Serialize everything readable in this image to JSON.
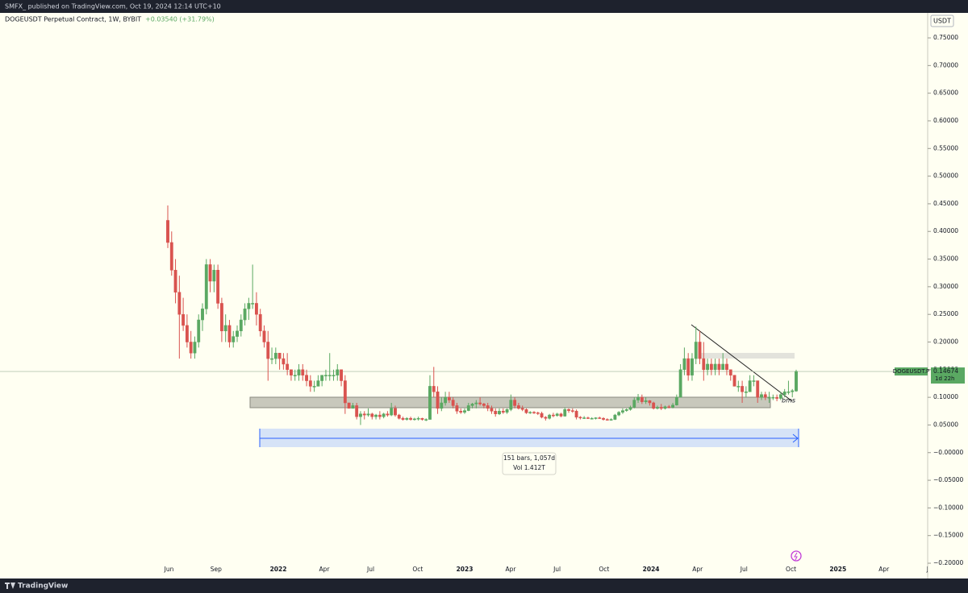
{
  "header": {
    "publisher": "SMFX_ published on TradingView.com, Oct 19, 2024 12:14 UTC+10",
    "brand": "TradingView"
  },
  "chart_data": {
    "type": "candlestick",
    "title": "DOGEUSDT Perpetual Contract, 1W, BYBIT",
    "change": "+0.03540 (+31.79%)",
    "currency": "USDT",
    "symbol_label": "DOGEUSDT.P",
    "last_price": 0.14674,
    "countdown": "1d 22h",
    "annotation": "bms",
    "measure": {
      "bars": "151 bars, 1,057d",
      "volume": "Vol 1.412T"
    },
    "up_color": "#5aa862",
    "down_color": "#d9534f",
    "ylim": [
      -0.2189,
      0.7952
    ],
    "yticks": [
      {
        "value": 0.75,
        "label": "0.75000"
      },
      {
        "value": 0.7,
        "label": "0.70000"
      },
      {
        "value": 0.65,
        "label": "0.65000"
      },
      {
        "value": 0.6,
        "label": "0.60000"
      },
      {
        "value": 0.55,
        "label": "0.55000"
      },
      {
        "value": 0.5,
        "label": "0.50000"
      },
      {
        "value": 0.45,
        "label": "0.45000"
      },
      {
        "value": 0.4,
        "label": "0.40000"
      },
      {
        "value": 0.35,
        "label": "0.35000"
      },
      {
        "value": 0.3,
        "label": "0.30000"
      },
      {
        "value": 0.25,
        "label": "0.25000"
      },
      {
        "value": 0.2,
        "label": "0.20000"
      },
      {
        "value": 0.15,
        "label": "0.15000"
      },
      {
        "value": 0.1,
        "label": "0.10000"
      },
      {
        "value": 0.05,
        "label": "0.05000"
      },
      {
        "value": 0,
        "label": "−0.00000"
      },
      {
        "value": -0.05,
        "label": "−0.05000"
      },
      {
        "value": -0.1,
        "label": "−0.10000"
      },
      {
        "value": -0.15,
        "label": "−0.15000"
      },
      {
        "value": -0.2,
        "label": "−0.20000"
      }
    ],
    "xticks": [
      {
        "value": "2021-06",
        "label": "Jun"
      },
      {
        "value": "2021-09",
        "label": "Sep"
      },
      {
        "value": "2022-01",
        "label": "2022"
      },
      {
        "value": "2022-04",
        "label": "Apr"
      },
      {
        "value": "2022-07",
        "label": "Jul"
      },
      {
        "value": "2022-10",
        "label": "Oct"
      },
      {
        "value": "2023-01",
        "label": "2023"
      },
      {
        "value": "2023-04",
        "label": "Apr"
      },
      {
        "value": "2023-07",
        "label": "Jul"
      },
      {
        "value": "2023-10",
        "label": "Oct"
      },
      {
        "value": "2024-01",
        "label": "2024"
      },
      {
        "value": "2024-04",
        "label": "Apr"
      },
      {
        "value": "2024-07",
        "label": "Jul"
      },
      {
        "value": "2024-10",
        "label": "Oct"
      },
      {
        "value": "2025-01",
        "label": "2025"
      },
      {
        "value": "2025-04",
        "label": "Apr"
      },
      {
        "value": "2025-07",
        "label": "Jul"
      }
    ],
    "candles": [
      [
        0.42,
        0.447,
        0.37,
        0.38
      ],
      [
        0.38,
        0.4,
        0.32,
        0.33
      ],
      [
        0.33,
        0.35,
        0.27,
        0.29
      ],
      [
        0.29,
        0.32,
        0.17,
        0.25
      ],
      [
        0.25,
        0.28,
        0.22,
        0.23
      ],
      [
        0.23,
        0.25,
        0.19,
        0.2
      ],
      [
        0.2,
        0.22,
        0.17,
        0.18
      ],
      [
        0.18,
        0.21,
        0.17,
        0.2
      ],
      [
        0.2,
        0.25,
        0.19,
        0.24
      ],
      [
        0.24,
        0.27,
        0.22,
        0.26
      ],
      [
        0.26,
        0.35,
        0.25,
        0.34
      ],
      [
        0.34,
        0.35,
        0.29,
        0.31
      ],
      [
        0.31,
        0.34,
        0.29,
        0.33
      ],
      [
        0.33,
        0.34,
        0.26,
        0.27
      ],
      [
        0.27,
        0.28,
        0.2,
        0.22
      ],
      [
        0.22,
        0.25,
        0.2,
        0.23
      ],
      [
        0.23,
        0.24,
        0.19,
        0.2
      ],
      [
        0.2,
        0.22,
        0.19,
        0.21
      ],
      [
        0.21,
        0.23,
        0.2,
        0.22
      ],
      [
        0.22,
        0.25,
        0.21,
        0.24
      ],
      [
        0.24,
        0.27,
        0.23,
        0.26
      ],
      [
        0.26,
        0.28,
        0.24,
        0.27
      ],
      [
        0.27,
        0.34,
        0.26,
        0.27
      ],
      [
        0.27,
        0.29,
        0.23,
        0.25
      ],
      [
        0.25,
        0.26,
        0.21,
        0.22
      ],
      [
        0.22,
        0.23,
        0.19,
        0.2
      ],
      [
        0.2,
        0.22,
        0.13,
        0.17
      ],
      [
        0.17,
        0.19,
        0.16,
        0.17
      ],
      [
        0.17,
        0.19,
        0.16,
        0.18
      ],
      [
        0.18,
        0.18,
        0.15,
        0.17
      ],
      [
        0.17,
        0.18,
        0.15,
        0.16
      ],
      [
        0.16,
        0.18,
        0.14,
        0.15
      ],
      [
        0.15,
        0.15,
        0.13,
        0.14
      ],
      [
        0.14,
        0.15,
        0.13,
        0.14
      ],
      [
        0.14,
        0.16,
        0.13,
        0.15
      ],
      [
        0.15,
        0.16,
        0.13,
        0.14
      ],
      [
        0.14,
        0.15,
        0.12,
        0.13
      ],
      [
        0.13,
        0.14,
        0.11,
        0.12
      ],
      [
        0.12,
        0.13,
        0.11,
        0.12
      ],
      [
        0.12,
        0.14,
        0.12,
        0.13
      ],
      [
        0.13,
        0.14,
        0.12,
        0.14
      ],
      [
        0.14,
        0.15,
        0.13,
        0.14
      ],
      [
        0.14,
        0.18,
        0.13,
        0.14
      ],
      [
        0.14,
        0.15,
        0.13,
        0.14
      ],
      [
        0.14,
        0.16,
        0.13,
        0.15
      ],
      [
        0.15,
        0.15,
        0.12,
        0.13
      ],
      [
        0.13,
        0.14,
        0.07,
        0.09
      ],
      [
        0.09,
        0.09,
        0.08,
        0.08
      ],
      [
        0.08,
        0.09,
        0.08,
        0.085
      ],
      [
        0.085,
        0.09,
        0.06,
        0.065
      ],
      [
        0.065,
        0.075,
        0.05,
        0.07
      ],
      [
        0.07,
        0.075,
        0.06,
        0.068
      ],
      [
        0.068,
        0.08,
        0.065,
        0.07
      ],
      [
        0.07,
        0.072,
        0.06,
        0.065
      ],
      [
        0.065,
        0.07,
        0.06,
        0.068
      ],
      [
        0.068,
        0.075,
        0.06,
        0.065
      ],
      [
        0.065,
        0.072,
        0.062,
        0.07
      ],
      [
        0.07,
        0.075,
        0.065,
        0.068
      ],
      [
        0.068,
        0.09,
        0.066,
        0.08
      ],
      [
        0.08,
        0.085,
        0.065,
        0.068
      ],
      [
        0.068,
        0.07,
        0.06,
        0.062
      ],
      [
        0.062,
        0.065,
        0.058,
        0.06
      ],
      [
        0.06,
        0.064,
        0.058,
        0.062
      ],
      [
        0.062,
        0.065,
        0.058,
        0.06
      ],
      [
        0.06,
        0.063,
        0.058,
        0.061
      ],
      [
        0.061,
        0.065,
        0.058,
        0.062
      ],
      [
        0.062,
        0.063,
        0.058,
        0.06
      ],
      [
        0.06,
        0.062,
        0.057,
        0.06
      ],
      [
        0.06,
        0.14,
        0.06,
        0.12
      ],
      [
        0.12,
        0.155,
        0.1,
        0.11
      ],
      [
        0.11,
        0.12,
        0.07,
        0.08
      ],
      [
        0.08,
        0.1,
        0.075,
        0.09
      ],
      [
        0.09,
        0.11,
        0.085,
        0.1
      ],
      [
        0.1,
        0.11,
        0.09,
        0.095
      ],
      [
        0.095,
        0.1,
        0.08,
        0.085
      ],
      [
        0.085,
        0.09,
        0.07,
        0.075
      ],
      [
        0.075,
        0.08,
        0.07,
        0.073
      ],
      [
        0.073,
        0.08,
        0.07,
        0.076
      ],
      [
        0.076,
        0.09,
        0.075,
        0.085
      ],
      [
        0.085,
        0.09,
        0.08,
        0.088
      ],
      [
        0.088,
        0.095,
        0.08,
        0.09
      ],
      [
        0.09,
        0.1,
        0.085,
        0.088
      ],
      [
        0.088,
        0.09,
        0.08,
        0.085
      ],
      [
        0.085,
        0.09,
        0.075,
        0.08
      ],
      [
        0.08,
        0.085,
        0.07,
        0.075
      ],
      [
        0.075,
        0.08,
        0.065,
        0.07
      ],
      [
        0.07,
        0.08,
        0.068,
        0.075
      ],
      [
        0.075,
        0.08,
        0.07,
        0.073
      ],
      [
        0.073,
        0.08,
        0.07,
        0.078
      ],
      [
        0.078,
        0.105,
        0.075,
        0.095
      ],
      [
        0.095,
        0.1,
        0.08,
        0.085
      ],
      [
        0.085,
        0.09,
        0.078,
        0.08
      ],
      [
        0.08,
        0.085,
        0.075,
        0.078
      ],
      [
        0.078,
        0.08,
        0.07,
        0.072
      ],
      [
        0.072,
        0.075,
        0.07,
        0.073
      ],
      [
        0.073,
        0.075,
        0.07,
        0.072
      ],
      [
        0.072,
        0.074,
        0.068,
        0.071
      ],
      [
        0.071,
        0.074,
        0.062,
        0.064
      ],
      [
        0.064,
        0.066,
        0.058,
        0.062
      ],
      [
        0.062,
        0.07,
        0.06,
        0.068
      ],
      [
        0.068,
        0.072,
        0.064,
        0.067
      ],
      [
        0.067,
        0.072,
        0.065,
        0.07
      ],
      [
        0.07,
        0.072,
        0.064,
        0.066
      ],
      [
        0.066,
        0.082,
        0.065,
        0.078
      ],
      [
        0.078,
        0.08,
        0.072,
        0.076
      ],
      [
        0.076,
        0.08,
        0.072,
        0.075
      ],
      [
        0.075,
        0.078,
        0.06,
        0.064
      ],
      [
        0.064,
        0.066,
        0.06,
        0.063
      ],
      [
        0.063,
        0.066,
        0.061,
        0.063
      ],
      [
        0.063,
        0.065,
        0.061,
        0.062
      ],
      [
        0.062,
        0.064,
        0.06,
        0.062
      ],
      [
        0.062,
        0.064,
        0.06,
        0.063
      ],
      [
        0.063,
        0.065,
        0.061,
        0.062
      ],
      [
        0.062,
        0.064,
        0.058,
        0.06
      ],
      [
        0.06,
        0.062,
        0.058,
        0.059
      ],
      [
        0.059,
        0.062,
        0.058,
        0.06
      ],
      [
        0.06,
        0.07,
        0.059,
        0.068
      ],
      [
        0.068,
        0.075,
        0.066,
        0.073
      ],
      [
        0.073,
        0.08,
        0.07,
        0.076
      ],
      [
        0.076,
        0.08,
        0.074,
        0.078
      ],
      [
        0.078,
        0.085,
        0.076,
        0.082
      ],
      [
        0.082,
        0.1,
        0.08,
        0.095
      ],
      [
        0.095,
        0.106,
        0.09,
        0.1
      ],
      [
        0.1,
        0.105,
        0.088,
        0.092
      ],
      [
        0.092,
        0.1,
        0.088,
        0.094
      ],
      [
        0.094,
        0.095,
        0.085,
        0.09
      ],
      [
        0.09,
        0.092,
        0.078,
        0.08
      ],
      [
        0.08,
        0.085,
        0.078,
        0.082
      ],
      [
        0.082,
        0.088,
        0.077,
        0.08
      ],
      [
        0.08,
        0.085,
        0.078,
        0.083
      ],
      [
        0.083,
        0.086,
        0.08,
        0.082
      ],
      [
        0.082,
        0.09,
        0.08,
        0.086
      ],
      [
        0.086,
        0.105,
        0.085,
        0.1
      ],
      [
        0.1,
        0.16,
        0.1,
        0.15
      ],
      [
        0.15,
        0.19,
        0.14,
        0.17
      ],
      [
        0.17,
        0.18,
        0.13,
        0.14
      ],
      [
        0.14,
        0.18,
        0.13,
        0.17
      ],
      [
        0.17,
        0.228,
        0.16,
        0.2
      ],
      [
        0.2,
        0.22,
        0.16,
        0.17
      ],
      [
        0.17,
        0.2,
        0.13,
        0.15
      ],
      [
        0.15,
        0.17,
        0.14,
        0.16
      ],
      [
        0.16,
        0.17,
        0.14,
        0.15
      ],
      [
        0.15,
        0.17,
        0.14,
        0.16
      ],
      [
        0.16,
        0.17,
        0.14,
        0.15
      ],
      [
        0.15,
        0.18,
        0.15,
        0.16
      ],
      [
        0.16,
        0.17,
        0.14,
        0.15
      ],
      [
        0.15,
        0.15,
        0.13,
        0.14
      ],
      [
        0.14,
        0.14,
        0.12,
        0.12
      ],
      [
        0.12,
        0.13,
        0.11,
        0.12
      ],
      [
        0.12,
        0.13,
        0.09,
        0.11
      ],
      [
        0.11,
        0.12,
        0.1,
        0.11
      ],
      [
        0.11,
        0.14,
        0.11,
        0.13
      ],
      [
        0.13,
        0.14,
        0.12,
        0.13
      ],
      [
        0.13,
        0.13,
        0.09,
        0.1
      ],
      [
        0.1,
        0.11,
        0.095,
        0.105
      ],
      [
        0.105,
        0.11,
        0.095,
        0.1
      ],
      [
        0.1,
        0.11,
        0.09,
        0.1
      ],
      [
        0.1,
        0.105,
        0.095,
        0.1
      ],
      [
        0.1,
        0.105,
        0.093,
        0.098
      ],
      [
        0.098,
        0.11,
        0.095,
        0.105
      ],
      [
        0.105,
        0.115,
        0.1,
        0.11
      ],
      [
        0.11,
        0.13,
        0.105,
        0.11
      ],
      [
        0.11,
        0.115,
        0.1,
        0.112
      ],
      [
        0.11134,
        0.15,
        0.11,
        0.14674
      ]
    ]
  }
}
